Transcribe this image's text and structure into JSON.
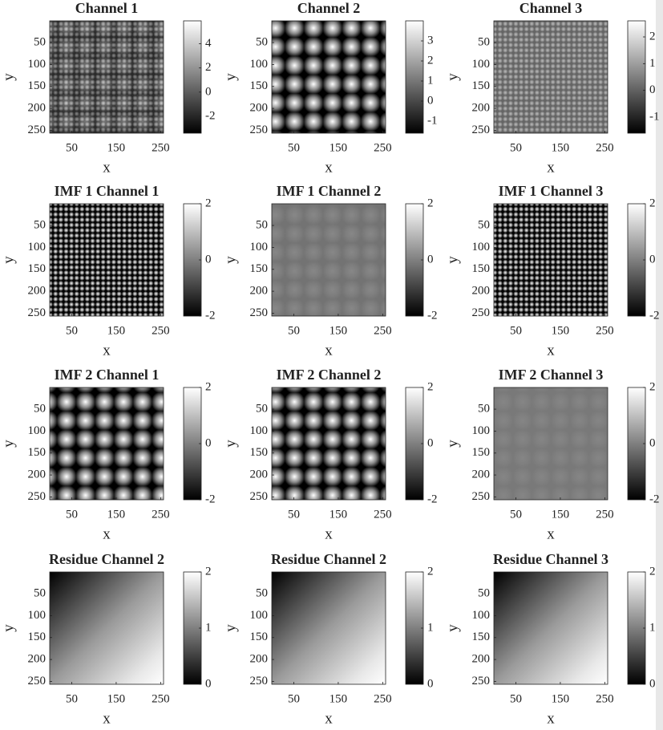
{
  "chart_data": [
    {
      "type": "heatmap",
      "title": "Channel 1",
      "xlabel": "x",
      "ylabel": "y",
      "xlim": [
        0.5,
        256.5
      ],
      "ylim": [
        256.5,
        0.5
      ],
      "xticks": [
        50,
        150,
        250
      ],
      "yticks": [
        50,
        100,
        150,
        200,
        250
      ],
      "clim": [
        -3.4,
        5.9
      ],
      "cticks": [
        -2,
        0,
        2,
        4
      ]
    },
    {
      "type": "heatmap",
      "title": "Channel 2",
      "xlabel": "x",
      "ylabel": "y",
      "xlim": [
        0.5,
        256.5
      ],
      "ylim": [
        256.5,
        0.5
      ],
      "xticks": [
        50,
        150,
        250
      ],
      "yticks": [
        50,
        100,
        150,
        200,
        250
      ],
      "clim": [
        -1.6,
        4.0
      ],
      "cticks": [
        -1,
        0,
        1,
        2,
        3
      ]
    },
    {
      "type": "heatmap",
      "title": "Channel 3",
      "xlabel": "x",
      "ylabel": "y",
      "xlim": [
        0.5,
        256.5
      ],
      "ylim": [
        256.5,
        0.5
      ],
      "xticks": [
        50,
        150,
        250
      ],
      "yticks": [
        50,
        100,
        150,
        200,
        250
      ],
      "clim": [
        -1.6,
        2.6
      ],
      "cticks": [
        -1,
        0,
        1,
        2
      ]
    },
    {
      "type": "heatmap",
      "title": "IMF 1 Channel 1",
      "xlabel": "x",
      "ylabel": "y",
      "xlim": [
        0.5,
        256.5
      ],
      "ylim": [
        256.5,
        0.5
      ],
      "xticks": [
        50,
        150,
        250
      ],
      "yticks": [
        50,
        100,
        150,
        200,
        250
      ],
      "clim": [
        -2,
        2
      ],
      "cticks": [
        -2,
        0,
        2
      ]
    },
    {
      "type": "heatmap",
      "title": "IMF 1 Channel 2",
      "xlabel": "x",
      "ylabel": "y",
      "xlim": [
        0.5,
        256.5
      ],
      "ylim": [
        256.5,
        0.5
      ],
      "xticks": [
        50,
        150,
        250
      ],
      "yticks": [
        50,
        100,
        150,
        200,
        250
      ],
      "clim": [
        -2,
        2
      ],
      "cticks": [
        -2,
        0,
        2
      ]
    },
    {
      "type": "heatmap",
      "title": "IMF 1 Channel 3",
      "xlabel": "x",
      "ylabel": "y",
      "xlim": [
        0.5,
        256.5
      ],
      "ylim": [
        256.5,
        0.5
      ],
      "xticks": [
        50,
        150,
        250
      ],
      "yticks": [
        50,
        100,
        150,
        200,
        250
      ],
      "clim": [
        -2,
        2
      ],
      "cticks": [
        -2,
        0,
        2
      ]
    },
    {
      "type": "heatmap",
      "title": "IMF 2 Channel 1",
      "xlabel": "x",
      "ylabel": "y",
      "xlim": [
        0.5,
        256.5
      ],
      "ylim": [
        256.5,
        0.5
      ],
      "xticks": [
        50,
        150,
        250
      ],
      "yticks": [
        50,
        100,
        150,
        200,
        250
      ],
      "clim": [
        -2,
        2
      ],
      "cticks": [
        -2,
        0,
        2
      ]
    },
    {
      "type": "heatmap",
      "title": "IMF 2 Channel 2",
      "xlabel": "x",
      "ylabel": "y",
      "xlim": [
        0.5,
        256.5
      ],
      "ylim": [
        256.5,
        0.5
      ],
      "xticks": [
        50,
        150,
        250
      ],
      "yticks": [
        50,
        100,
        150,
        200,
        250
      ],
      "clim": [
        -2,
        2
      ],
      "cticks": [
        -2,
        0,
        2
      ]
    },
    {
      "type": "heatmap",
      "title": "IMF 2 Channel 3",
      "xlabel": "x",
      "ylabel": "y",
      "xlim": [
        0.5,
        256.5
      ],
      "ylim": [
        256.5,
        0.5
      ],
      "xticks": [
        50,
        150,
        250
      ],
      "yticks": [
        50,
        100,
        150,
        200,
        250
      ],
      "clim": [
        -2,
        2
      ],
      "cticks": [
        -2,
        0,
        2
      ]
    },
    {
      "type": "heatmap",
      "title": "Residue Channel 2",
      "xlabel": "x",
      "ylabel": "y",
      "xlim": [
        0.5,
        256.5
      ],
      "ylim": [
        256.5,
        0.5
      ],
      "xticks": [
        50,
        150,
        250
      ],
      "yticks": [
        50,
        100,
        150,
        200,
        250
      ],
      "clim": [
        0,
        2
      ],
      "cticks": [
        0,
        1,
        2
      ]
    },
    {
      "type": "heatmap",
      "title": "Residue Channel 2",
      "xlabel": "x",
      "ylabel": "y",
      "xlim": [
        0.5,
        256.5
      ],
      "ylim": [
        256.5,
        0.5
      ],
      "xticks": [
        50,
        150,
        250
      ],
      "yticks": [
        50,
        100,
        150,
        200,
        250
      ],
      "clim": [
        0,
        2
      ],
      "cticks": [
        0,
        1,
        2
      ]
    },
    {
      "type": "heatmap",
      "title": "Residue Channel 3",
      "xlabel": "x",
      "ylabel": "y",
      "xlim": [
        0.5,
        256.5
      ],
      "ylim": [
        256.5,
        0.5
      ],
      "xticks": [
        50,
        150,
        250
      ],
      "yticks": [
        50,
        100,
        150,
        200,
        250
      ],
      "clim": [
        0,
        2
      ],
      "cticks": [
        0,
        1,
        2
      ]
    }
  ]
}
